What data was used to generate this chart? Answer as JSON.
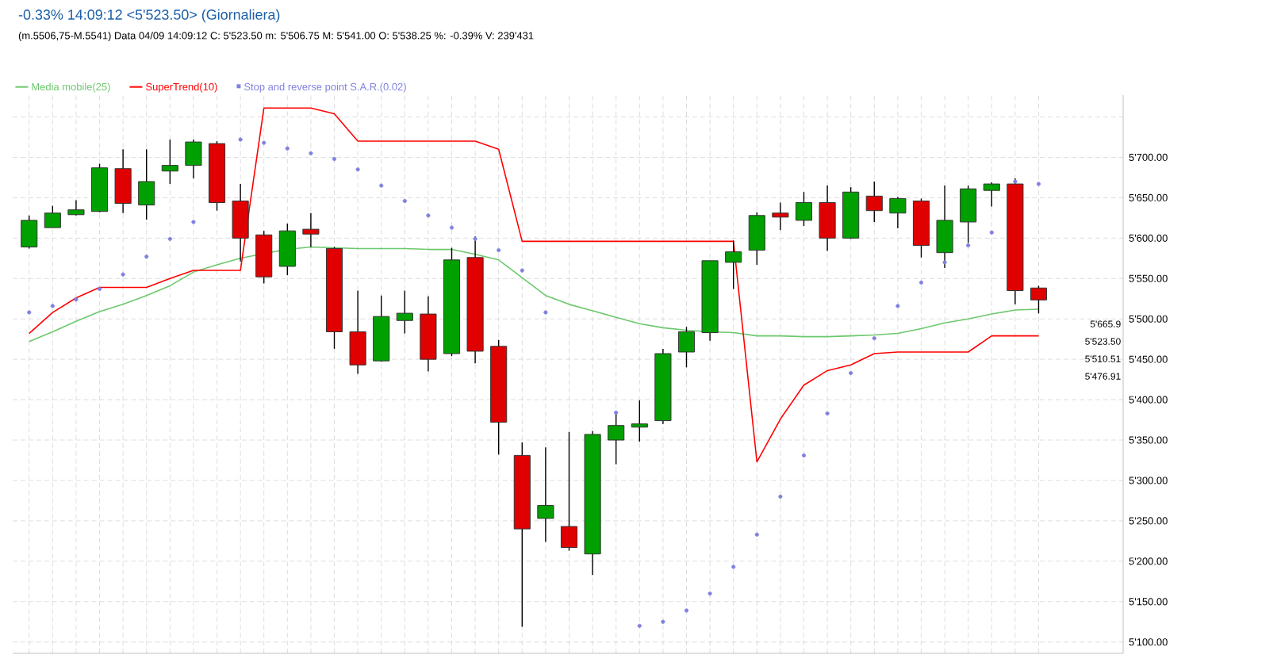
{
  "chart_data": {
    "type": "candlestick",
    "title": "-0.33% 14:09:12 <5'523.50> (Giornaliera)",
    "subtitle": "(m.5506,75-M.5541) Data 04/09 14:09:12 C: 5'523.50   m: 5'506.75   M: 5'541.00   O: 5'538.25   %: -0.39%   V: 239'431",
    "categories": [
      null,
      null,
      null,
      null,
      null,
      null,
      null,
      null,
      null,
      null,
      null,
      null,
      null,
      null,
      null,
      null,
      null,
      null,
      null,
      null,
      null,
      null,
      null,
      null,
      null,
      null,
      null,
      null,
      null,
      null,
      null,
      null,
      null,
      null,
      null,
      null,
      null,
      null,
      null,
      null,
      null,
      null,
      null,
      null
    ],
    "ohlc": [
      [
        5589,
        5628,
        5587,
        5622
      ],
      [
        5613,
        5640,
        5613,
        5631
      ],
      [
        5629,
        5647,
        5628,
        5635
      ],
      [
        5633,
        5692,
        5632,
        5687
      ],
      [
        5686,
        5710,
        5631,
        5643
      ],
      [
        5641,
        5710,
        5623,
        5670
      ],
      [
        5683,
        5722,
        5667,
        5690
      ],
      [
        5690,
        5722,
        5674,
        5719
      ],
      [
        5717,
        5720,
        5634,
        5644
      ],
      [
        5646,
        5667,
        5571,
        5600
      ],
      [
        5604,
        5609,
        5544,
        5552
      ],
      [
        5565,
        5618,
        5554,
        5609
      ],
      [
        5611,
        5631,
        5589,
        5605
      ],
      [
        5587,
        5589,
        5463,
        5484
      ],
      [
        5484,
        5535,
        5432,
        5443
      ],
      [
        5448,
        5529,
        5447,
        5503
      ],
      [
        5498,
        5535,
        5482,
        5507
      ],
      [
        5506,
        5528,
        5435,
        5450
      ],
      [
        5457,
        5588,
        5454,
        5573
      ],
      [
        5576,
        5602,
        5445,
        5460
      ],
      [
        5466,
        5474,
        5332,
        5372
      ],
      [
        5331,
        5347,
        5119,
        5240
      ],
      [
        5253,
        5341,
        5224,
        5269
      ],
      [
        5243,
        5360,
        5213,
        5217
      ],
      [
        5209,
        5361,
        5183,
        5357
      ],
      [
        5350,
        5385,
        5320,
        5368
      ],
      [
        5366,
        5399,
        5348,
        5370
      ],
      [
        5374,
        5463,
        5370,
        5457
      ],
      [
        5459,
        5490,
        5440,
        5484
      ],
      [
        5483,
        5572,
        5473,
        5572
      ],
      [
        5570,
        5597,
        5537,
        5583
      ],
      [
        5585,
        5632,
        5567,
        5628
      ],
      [
        5631,
        5644,
        5610,
        5626
      ],
      [
        5622,
        5657,
        5615,
        5644
      ],
      [
        5644,
        5665,
        5584,
        5600
      ],
      [
        5600,
        5663,
        5599,
        5657
      ],
      [
        5652,
        5670,
        5620,
        5634
      ],
      [
        5631,
        5651,
        5612,
        5649
      ],
      [
        5646,
        5649,
        5576,
        5591
      ],
      [
        5582,
        5665,
        5563,
        5622
      ],
      [
        5620,
        5665,
        5594,
        5661
      ],
      [
        5659,
        5669,
        5639,
        5667
      ],
      [
        5667,
        5674,
        5518,
        5535
      ],
      [
        5538.25,
        5541,
        5506.75,
        5523.5
      ]
    ],
    "colors": [
      "#00a000",
      "#00a000",
      "#00a000",
      "#00a000",
      "#e00000",
      "#00a000",
      "#00a000",
      "#00a000",
      "#e00000",
      "#e00000",
      "#e00000",
      "#00a000",
      "#e00000",
      "#e00000",
      "#e00000",
      "#00a000",
      "#00a000",
      "#e00000",
      "#00a000",
      "#e00000",
      "#e00000",
      "#e00000",
      "#00a000",
      "#e00000",
      "#00a000",
      "#00a000",
      "#00a000",
      "#00a000",
      "#00a000",
      "#00a000",
      "#00a000",
      "#00a000",
      "#e00000",
      "#00a000",
      "#e00000",
      "#00a000",
      "#e00000",
      "#00a000",
      "#e00000",
      "#00a000",
      "#00a000",
      "#00a000",
      "#e00000",
      "#e00000"
    ],
    "series": [
      {
        "name": "Media mobile(25)",
        "type": "line",
        "color": "#6cc86c",
        "values": [
          5472,
          5484,
          5497,
          5509,
          5518,
          5529,
          5541,
          5558,
          5567,
          5575,
          5581,
          5586,
          5589,
          5588,
          5587,
          5587,
          5587,
          5586,
          5586,
          5580,
          5573,
          5551,
          5529,
          5518,
          5510,
          5502,
          5494,
          5489,
          5486,
          5484,
          5483,
          5479,
          5479,
          5478,
          5478,
          5479,
          5480,
          5482,
          5488,
          5495,
          5500,
          5506,
          5511,
          5512
        ]
      },
      {
        "name": "SuperTrend(10)",
        "type": "line",
        "color": "#ff0000",
        "values": [
          5482,
          5508,
          5526,
          5539,
          5539,
          5539,
          5550,
          5560,
          5560,
          5560,
          5761,
          5761,
          5761,
          5754,
          5720,
          5720,
          5720,
          5720,
          5720,
          5720,
          5710,
          5596,
          5596,
          5596,
          5596,
          5596,
          5596,
          5596,
          5596,
          5596,
          5596,
          5323,
          5376,
          5418,
          5436,
          5443,
          5457,
          5459,
          5459,
          5459,
          5459,
          5479,
          5479,
          5479
        ]
      },
      {
        "name": "Stop and reverse point S.A.R.(0.02)",
        "type": "scatter",
        "marker": "circle",
        "color": "#8080e0",
        "values": [
          5508,
          5516,
          5524,
          5537,
          5555,
          5577,
          5599,
          5620,
          null,
          5722,
          5718,
          5711,
          5705,
          5698,
          5685,
          5665,
          5646,
          5628,
          5613,
          5599,
          5585,
          5560,
          5508,
          null,
          null,
          5384,
          5120,
          5125,
          5139,
          5160,
          5193,
          5233,
          5280,
          5331,
          5383,
          5433,
          5476,
          5516,
          5545,
          5570,
          5591,
          5607,
          5670,
          5667
        ]
      }
    ],
    "ylim": [
      5086,
      5777
    ],
    "yticks": [
      {
        "value": 5100,
        "label": "5'100.00"
      },
      {
        "value": 5150,
        "label": "5'150.00"
      },
      {
        "value": 5200,
        "label": "5'200.00"
      },
      {
        "value": 5250,
        "label": "5'250.00"
      },
      {
        "value": 5300,
        "label": "5'300.00"
      },
      {
        "value": 5350,
        "label": "5'350.00"
      },
      {
        "value": 5400,
        "label": "5'400.00"
      },
      {
        "value": 5450,
        "label": "5'450.00"
      },
      {
        "value": 5500,
        "label": "5'500.00"
      },
      {
        "value": 5550,
        "label": "5'550.00"
      },
      {
        "value": 5600,
        "label": "5'600.00"
      },
      {
        "value": 5650,
        "label": "5'650.00"
      },
      {
        "value": 5700,
        "label": "5'700.00"
      },
      {
        "value": 5750,
        "label": null
      }
    ],
    "annotations": [
      "5'665.9",
      "5'523.50",
      "5'510.51",
      "5'476.91"
    ],
    "grid": true,
    "legend": "top left",
    "tick_labels": "y"
  }
}
